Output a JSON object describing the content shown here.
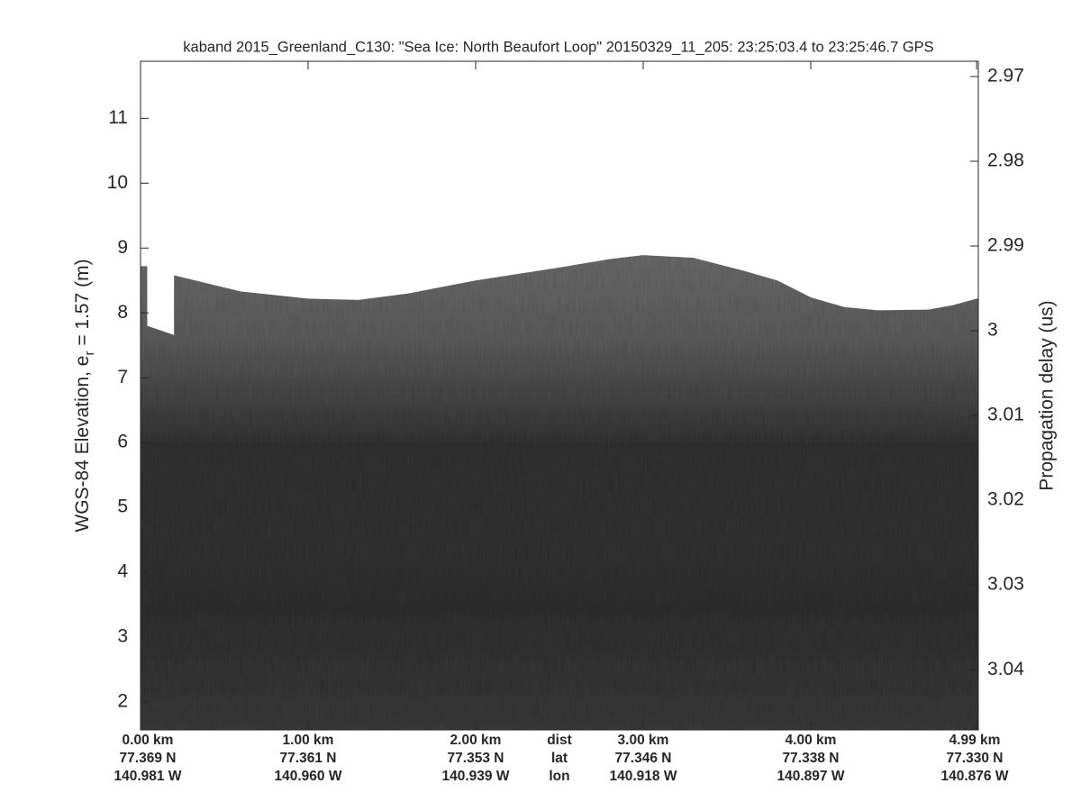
{
  "chart_data": {
    "type": "echogram",
    "title": "kaband 2015_Greenland_C130: \"Sea Ice: North Beaufort Loop\"  20150329_11_205: 23:25:03.4 to 23:25:46.7 GPS",
    "y_label": "WGS-84 Elevation, e",
    "y_label_sub": "r",
    "y_label_end": " = 1.57 (m)",
    "y2_label": "Propagation delay (us)",
    "xlim": [
      0,
      5
    ],
    "xticks": [
      {
        "value": 0,
        "label": "0.00 km",
        "lat": "77.369 N",
        "lon": "140.981 W"
      },
      {
        "value": 1,
        "label": "1.00 km",
        "lat": "77.361 N",
        "lon": "140.960 W"
      },
      {
        "value": 2,
        "label": "2.00 km",
        "lat": "77.353 N",
        "lon": "140.939 W"
      },
      {
        "value": 3,
        "label": "3.00 km",
        "lat": "77.346 N",
        "lon": "140.918 W"
      },
      {
        "value": 4,
        "label": "4.00 km",
        "lat": "77.338 N",
        "lon": "140.897 W"
      },
      {
        "value": 4.99,
        "label": "4.99 km",
        "lat": "77.330 N",
        "lon": "140.876 W"
      }
    ],
    "row_labels": [
      "dist",
      "lat",
      "lon"
    ],
    "ylim": [
      1.57,
      11.88
    ],
    "yticks": [
      2,
      3,
      4,
      5,
      6,
      7,
      8,
      9,
      10,
      11
    ],
    "y2lim": [
      3.0471,
      2.9682
    ],
    "y2ticks": [
      2.97,
      2.98,
      2.99,
      3,
      3.01,
      3.02,
      3.03,
      3.04
    ],
    "surface": {
      "x": [
        0,
        0.04,
        0.04,
        0.2,
        0.2,
        0.6,
        1.0,
        1.3,
        1.6,
        2.0,
        2.5,
        2.8,
        3.0,
        3.3,
        3.6,
        3.8,
        4.0,
        4.2,
        4.4,
        4.7,
        4.85,
        4.99
      ],
      "elevation": [
        8.72,
        8.72,
        7.8,
        7.66,
        8.58,
        8.33,
        8.22,
        8.2,
        8.3,
        8.5,
        8.7,
        8.83,
        8.89,
        8.85,
        8.65,
        8.5,
        8.24,
        8.09,
        8.04,
        8.05,
        8.12,
        8.22
      ]
    },
    "color": "#6e6e6e"
  }
}
